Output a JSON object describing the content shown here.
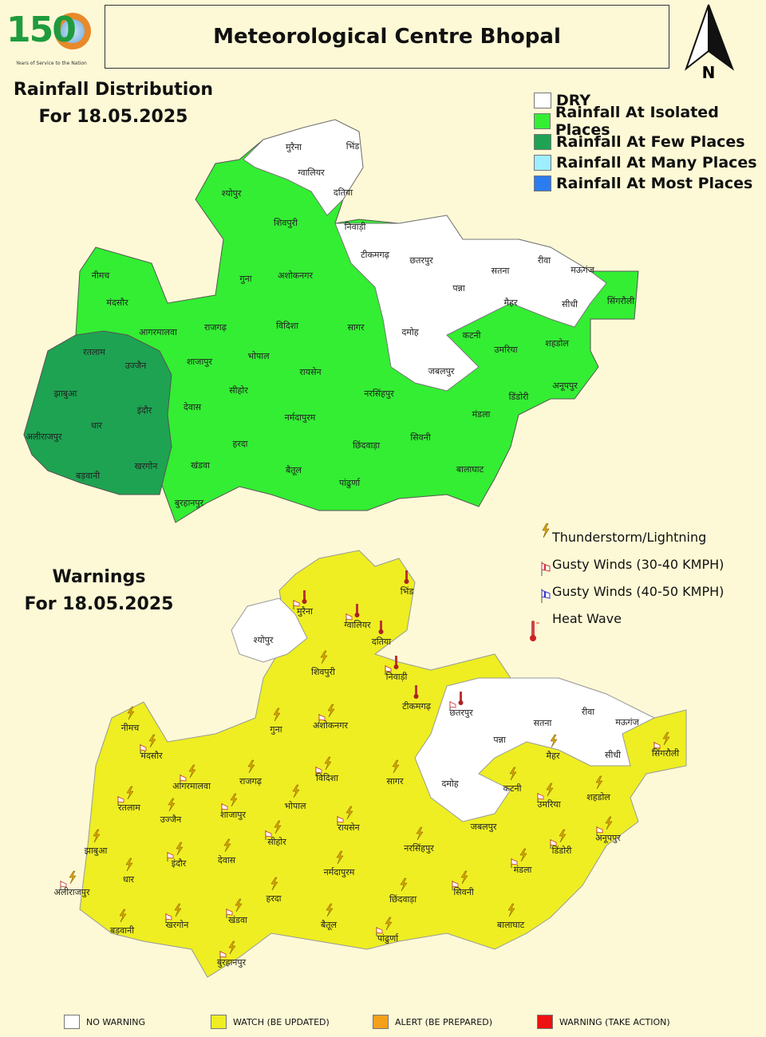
{
  "header": {
    "title": "Meteorological Centre Bhopal",
    "logo_text": "150",
    "logo_tagline": "Years of Service to the Nation",
    "north_label": "N"
  },
  "rainfall": {
    "heading_line1": "Rainfall Distribution",
    "heading_line2": "For 18.05.2025",
    "legend": [
      {
        "label": "DRY",
        "color": "#ffffff"
      },
      {
        "label": "Rainfall At Isolated Places",
        "color": "#33ee33"
      },
      {
        "label": "Rainfall At Few Places",
        "color": "#1ea352"
      },
      {
        "label": "Rainfall At Many Places",
        "color": "#9eeeff"
      },
      {
        "label": "Rainfall At Most Places",
        "color": "#2a7cf0"
      }
    ],
    "districts": [
      "मुरैना",
      "भिंड",
      "ग्वालियर",
      "दतिया",
      "श्योपुर",
      "शिवपुरी",
      "निवाड़ी",
      "टीकमगढ़",
      "छतरपुर",
      "सतना",
      "रीवा",
      "मऊगंज",
      "पन्ना",
      "सीधी",
      "सिंगरौली",
      "नीमच",
      "मंदसौर",
      "गुना",
      "अशोकनगर",
      "मैहर",
      "दमोह",
      "कटनी",
      "उमरिया",
      "शहडोल",
      "आगरमालवा",
      "राजगढ़",
      "विदिशा",
      "सागर",
      "रतलाम",
      "उज्जैन",
      "शाजापुर",
      "भोपाल",
      "रायसेन",
      "जबलपुर",
      "अनूपपुर",
      "झाबुआ",
      "इंदौर",
      "देवास",
      "सीहोर",
      "नरसिंहपुर",
      "डिंडोरी",
      "धार",
      "अलीराजपुर",
      "नर्मदापुरम",
      "मंडला",
      "छिंदवाड़ा",
      "सिवनी",
      "हरदा",
      "खंडवा",
      "बड़वानी",
      "खरगोन",
      "बैतूल",
      "पांढुर्णा",
      "बालाघाट",
      "बुरहानपुर"
    ]
  },
  "warnings": {
    "heading_line1": "Warnings",
    "heading_line2": "For 18.05.2025",
    "icon_legend": [
      {
        "label": "Thunderstorm/Lightning",
        "icon": "lightning-icon"
      },
      {
        "label": "Gusty Winds (30-40 KMPH)",
        "icon": "windsock-red-icon"
      },
      {
        "label": "Gusty Winds (40-50 KMPH)",
        "icon": "windsock-blue-icon"
      },
      {
        "label": "Heat Wave",
        "icon": "thermometer-icon"
      }
    ],
    "color_legend": [
      {
        "label": "NO WARNING",
        "color": "#ffffff"
      },
      {
        "label": "WATCH (BE UPDATED)",
        "color": "#eeee22"
      },
      {
        "label": "ALERT (BE PREPARED)",
        "color": "#f5a01a"
      },
      {
        "label": "WARNING (TAKE ACTION)",
        "color": "#ee1111"
      }
    ],
    "districts": [
      "मुरैना",
      "भिंड",
      "ग्वालियर",
      "दतिया",
      "श्योपुर",
      "शिवपुरी",
      "निवाड़ी",
      "टीकमगढ़",
      "छतरपुर",
      "सतना",
      "रीवा",
      "मऊगंज",
      "पन्ना",
      "सीधी",
      "सिंगरौली",
      "नीमच",
      "मंदसौर",
      "गुना",
      "अशोकनगर",
      "मैहर",
      "दमोह",
      "कटनी",
      "उमरिया",
      "शहडोल",
      "आगरमालवा",
      "राजगढ़",
      "विदिशा",
      "सागर",
      "रतलाम",
      "उज्जैन",
      "शाजापुर",
      "भोपाल",
      "रायसेन",
      "जबलपुर",
      "अनूपपुर",
      "झाबुआ",
      "इंदौर",
      "देवास",
      "सीहोर",
      "नरसिंहपुर",
      "डिंडोरी",
      "धार",
      "अलीराजपुर",
      "नर्मदापुरम",
      "मंडला",
      "छिंदवाड़ा",
      "सिवनी",
      "हरदा",
      "खंडवा",
      "बड़वानी",
      "खरगोन",
      "बैतूल",
      "पांढुर्णा",
      "बालाघाट",
      "बुरहानपुर"
    ]
  }
}
